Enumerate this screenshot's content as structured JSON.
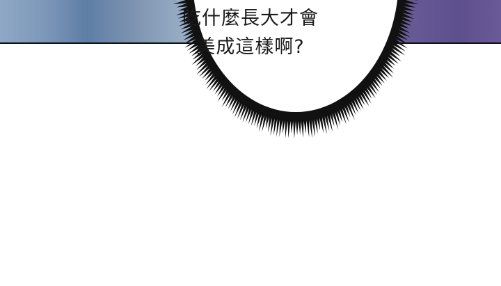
{
  "bubble": {
    "line1": "吃什麼長大才會",
    "line2": "美成這樣啊?"
  },
  "colors": {
    "panel_left": "#7f95b1",
    "panel_right": "#5e4f8e",
    "border": "#111111",
    "spikes": "#111111"
  }
}
